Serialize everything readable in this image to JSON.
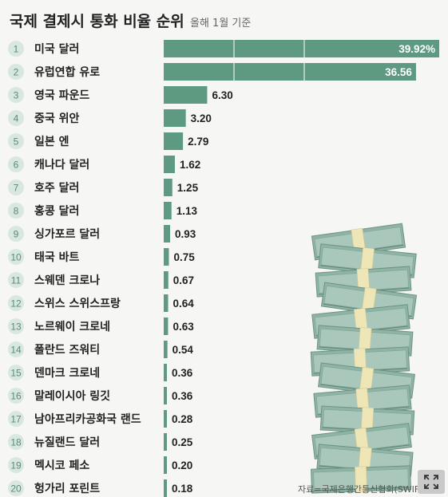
{
  "chart_data": {
    "type": "bar",
    "orientation": "horizontal",
    "title": "국제 결제시 통화 비율 순위",
    "subtitle": "올해 1월 기준",
    "ranks": [
      "1",
      "2",
      "3",
      "4",
      "5",
      "6",
      "7",
      "8",
      "9",
      "10",
      "11",
      "12",
      "13",
      "14",
      "15",
      "16",
      "17",
      "18",
      "19",
      "20"
    ],
    "categories": [
      "미국 달러",
      "유럽연합 유로",
      "영국 파운드",
      "중국 위안",
      "일본 엔",
      "캐나다 달러",
      "호주 달러",
      "홍콩 달러",
      "싱가포르 달러",
      "태국 바트",
      "스웨덴 크로나",
      "스위스 스위스프랑",
      "노르웨이 크로네",
      "폴란드 즈워티",
      "덴마크 크로네",
      "말레이시아 링깃",
      "남아프리카공화국 랜드",
      "뉴질랜드 달러",
      "멕시코 페소",
      "헝가리 포린트"
    ],
    "values": [
      39.92,
      36.56,
      6.3,
      3.2,
      2.79,
      1.62,
      1.25,
      1.13,
      0.93,
      0.75,
      0.67,
      0.64,
      0.63,
      0.54,
      0.36,
      0.36,
      0.28,
      0.25,
      0.2,
      0.18
    ],
    "value_labels": [
      "39.92%",
      "36.56",
      "6.30",
      "3.20",
      "2.79",
      "1.62",
      "1.25",
      "1.13",
      "0.93",
      "0.75",
      "0.67",
      "0.64",
      "0.63",
      "0.54",
      "0.36",
      "0.36",
      "0.28",
      "0.25",
      "0.20",
      "0.18"
    ],
    "source": "자료=국제은행간통신협회(SWIFT)"
  },
  "colors": {
    "bar": "#5e9a82",
    "rank_circle": "#d8e8e0",
    "rank_text": "#5a8a75",
    "background": "#f6f6f4"
  },
  "expand_icon": "expand-icon"
}
